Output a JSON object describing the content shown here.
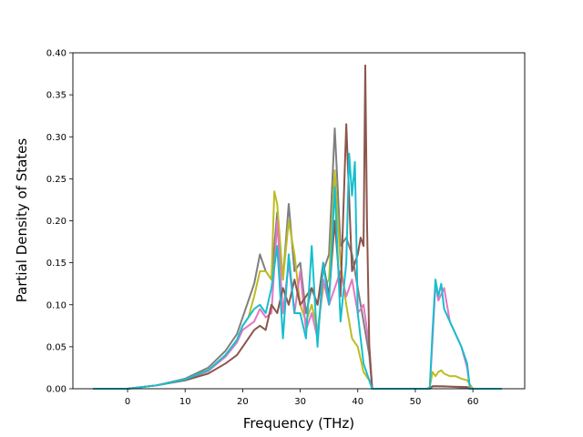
{
  "chart_data": {
    "type": "line",
    "title": "",
    "xlabel": "Frequency (THz)",
    "ylabel": "Partial Density of States",
    "xlim": [
      -9.5,
      69
    ],
    "ylim": [
      0.0,
      0.4
    ],
    "xticks": [
      0,
      10,
      20,
      30,
      40,
      50,
      60
    ],
    "xtick_labels": [
      "0",
      "10",
      "20",
      "30",
      "40",
      "50",
      "60"
    ],
    "yticks": [
      0.0,
      0.05,
      0.1,
      0.15,
      0.2,
      0.25,
      0.3,
      0.35,
      0.4
    ],
    "ytick_labels": [
      "0.00",
      "0.05",
      "0.10",
      "0.15",
      "0.20",
      "0.25",
      "0.30",
      "0.35",
      "0.40"
    ],
    "grid": false,
    "legend": false,
    "series": [
      {
        "color": "#7f7f7f",
        "x": [
          -6,
          0,
          5,
          10,
          14,
          17,
          19,
          20,
          21,
          22,
          23,
          24,
          25,
          26,
          27,
          28,
          29,
          30,
          31,
          32,
          33,
          34,
          35,
          36,
          37,
          38,
          39,
          40,
          41,
          42,
          42.5,
          43,
          52,
          52.5,
          53,
          53.5,
          54,
          55,
          57,
          59,
          59.5,
          60,
          65
        ],
        "y": [
          0,
          0,
          0.004,
          0.012,
          0.025,
          0.045,
          0.065,
          0.085,
          0.105,
          0.125,
          0.16,
          0.14,
          0.13,
          0.21,
          0.13,
          0.22,
          0.14,
          0.15,
          0.09,
          0.12,
          0.1,
          0.14,
          0.16,
          0.31,
          0.17,
          0.18,
          0.16,
          0.12,
          0.08,
          0.04,
          0.0,
          0,
          0,
          0,
          0.003,
          0.003,
          0.003,
          0.003,
          0.002,
          0.001,
          0.0,
          0,
          0
        ]
      },
      {
        "color": "#bcbd22",
        "x": [
          -6,
          0,
          5,
          10,
          14,
          17,
          19,
          20,
          21,
          22,
          23,
          24,
          25,
          25.5,
          26,
          27,
          28,
          29,
          30,
          31,
          32,
          33,
          34,
          35,
          36,
          37,
          38,
          39,
          40,
          41,
          42,
          42.5,
          43,
          52,
          52.5,
          53,
          53.5,
          54,
          54.5,
          55,
          56,
          57,
          58,
          59,
          59.5,
          60,
          65
        ],
        "y": [
          0,
          0,
          0.004,
          0.011,
          0.022,
          0.04,
          0.058,
          0.075,
          0.085,
          0.11,
          0.14,
          0.14,
          0.13,
          0.235,
          0.22,
          0.13,
          0.2,
          0.16,
          0.1,
          0.08,
          0.1,
          0.07,
          0.12,
          0.13,
          0.26,
          0.15,
          0.1,
          0.06,
          0.05,
          0.02,
          0.01,
          0.0,
          0,
          0,
          0.002,
          0.02,
          0.015,
          0.02,
          0.022,
          0.018,
          0.015,
          0.015,
          0.012,
          0.01,
          0.005,
          0,
          0
        ]
      },
      {
        "color": "#e377c2",
        "x": [
          -6,
          0,
          5,
          10,
          14,
          17,
          19,
          20,
          21,
          22,
          23,
          24,
          25,
          26,
          27,
          28,
          29,
          30,
          31,
          32,
          33,
          34,
          35,
          36,
          37,
          38,
          39,
          40,
          41,
          42,
          42.5,
          43,
          52,
          52.5,
          53,
          53.5,
          54,
          55,
          56,
          57,
          58,
          59,
          59.5,
          60,
          65
        ],
        "y": [
          0,
          0,
          0.004,
          0.011,
          0.021,
          0.038,
          0.055,
          0.07,
          0.075,
          0.08,
          0.095,
          0.085,
          0.09,
          0.2,
          0.09,
          0.15,
          0.09,
          0.14,
          0.07,
          0.09,
          0.06,
          0.13,
          0.1,
          0.12,
          0.14,
          0.11,
          0.13,
          0.09,
          0.1,
          0.05,
          0.0,
          0,
          0,
          0,
          0.06,
          0.125,
          0.105,
          0.12,
          0.08,
          0.065,
          0.05,
          0.025,
          0.0,
          0,
          0
        ]
      },
      {
        "color": "#8c564b",
        "x": [
          -6,
          0,
          5,
          10,
          14,
          17,
          19,
          20,
          21,
          22,
          23,
          24,
          25,
          26,
          27,
          28,
          29,
          30,
          31,
          32,
          33,
          34,
          35,
          36,
          37,
          38,
          39,
          40,
          40.5,
          41,
          41.3,
          41.6,
          42,
          42.5,
          43,
          52,
          52.5,
          53,
          59,
          59.5,
          60,
          65
        ],
        "y": [
          0,
          0,
          0.004,
          0.01,
          0.018,
          0.03,
          0.04,
          0.05,
          0.06,
          0.07,
          0.075,
          0.07,
          0.1,
          0.09,
          0.12,
          0.1,
          0.13,
          0.1,
          0.11,
          0.12,
          0.1,
          0.15,
          0.11,
          0.2,
          0.11,
          0.315,
          0.14,
          0.16,
          0.18,
          0.17,
          0.385,
          0.2,
          0.05,
          0.0,
          0,
          0,
          0,
          0.003,
          0.002,
          0.0,
          0,
          0
        ]
      },
      {
        "color": "#17becf",
        "x": [
          -6,
          0,
          5,
          10,
          14,
          17,
          19,
          20,
          21,
          22,
          23,
          24,
          25,
          26,
          27,
          28,
          29,
          30,
          31,
          32,
          33,
          34,
          35,
          36,
          37,
          38,
          38.5,
          39,
          39.5,
          40,
          40.5,
          41,
          41.5,
          42,
          42.5,
          43,
          52,
          52.5,
          53,
          53.5,
          54,
          54.5,
          55,
          56,
          57,
          58,
          59,
          59.5,
          60,
          65
        ],
        "y": [
          0,
          0,
          0.004,
          0.011,
          0.022,
          0.04,
          0.058,
          0.075,
          0.085,
          0.095,
          0.1,
          0.09,
          0.12,
          0.17,
          0.06,
          0.16,
          0.09,
          0.09,
          0.06,
          0.17,
          0.05,
          0.15,
          0.1,
          0.24,
          0.08,
          0.15,
          0.28,
          0.23,
          0.27,
          0.09,
          0.06,
          0.03,
          0.02,
          0.01,
          0.0,
          0,
          0,
          0,
          0.07,
          0.13,
          0.11,
          0.125,
          0.095,
          0.08,
          0.065,
          0.05,
          0.03,
          0.0,
          0,
          0
        ]
      }
    ]
  }
}
